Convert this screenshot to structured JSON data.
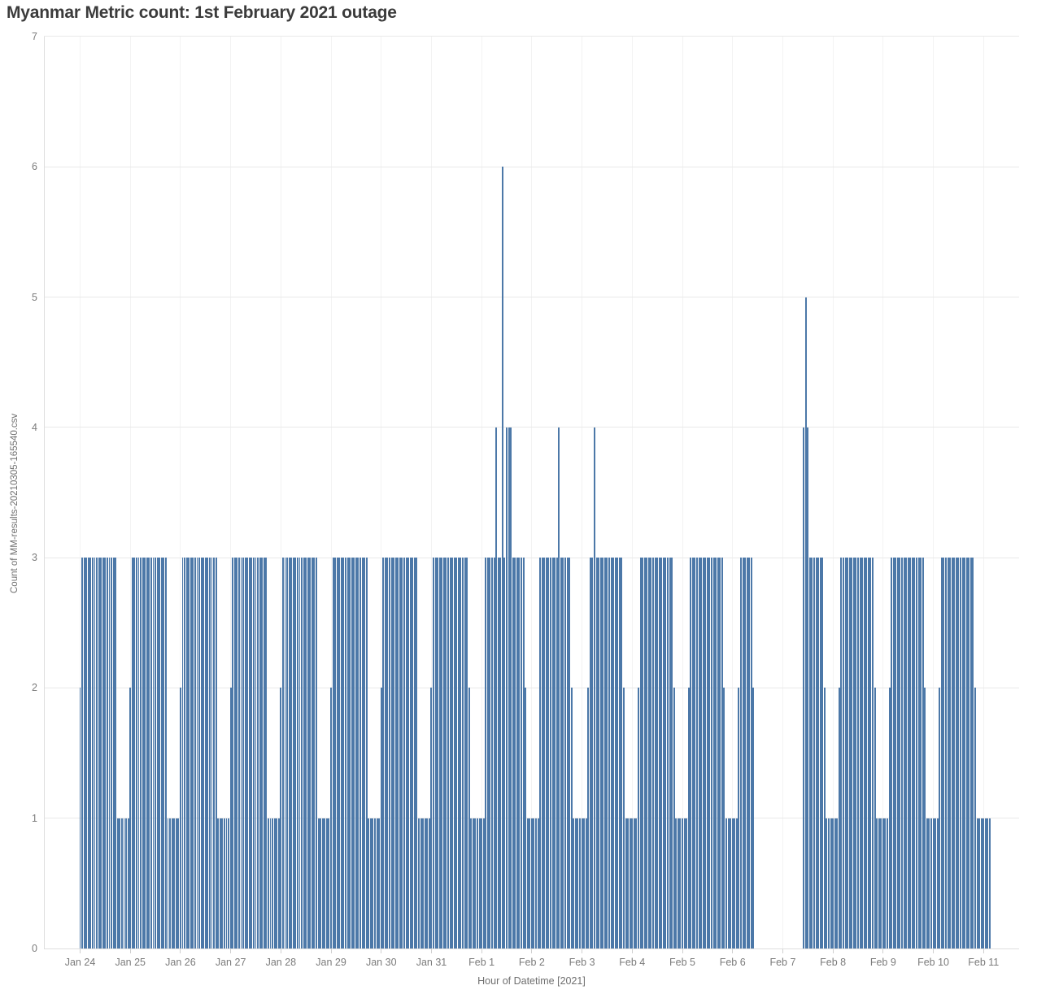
{
  "colors": {
    "bar": "#4c78a8",
    "title_text": "#3b3b3b",
    "axis_text": "#7b7b7b",
    "gridline": "#e9e9e9"
  },
  "chart_data": {
    "type": "bar",
    "title": "Myanmar Metric count: 1st February 2021 outage",
    "xlabel": "Hour of Datetime [2021]",
    "ylabel": "Count of MM-results-20210305-165540.csv",
    "ylim": [
      0,
      7
    ],
    "y_ticks": [
      0,
      1,
      2,
      3,
      4,
      5,
      6,
      7
    ],
    "grid": "horizontal-on, faint-vertical-day-lines",
    "legend": "none",
    "granularity": "one bar per hour, 24 bars per day tick interval",
    "x_tick_labels": [
      "Jan 24",
      "Jan 25",
      "Jan 26",
      "Jan 27",
      "Jan 28",
      "Jan 29",
      "Jan 30",
      "Jan 31",
      "Feb 1",
      "Feb 2",
      "Feb 3",
      "Feb 4",
      "Feb 5",
      "Feb 6",
      "Feb 7",
      "Feb 8",
      "Feb 9",
      "Feb 10",
      "Feb 11"
    ],
    "days": [
      {
        "date": "Jan 24",
        "hours": [
          2,
          3,
          3,
          3,
          3,
          3,
          3,
          3,
          3,
          3,
          3,
          3,
          3,
          3,
          3,
          3,
          3,
          3,
          1,
          1,
          1,
          1,
          1,
          1
        ]
      },
      {
        "date": "Jan 25",
        "hours": [
          2,
          3,
          3,
          3,
          3,
          3,
          3,
          3,
          3,
          3,
          3,
          3,
          3,
          3,
          3,
          3,
          3,
          3,
          1,
          1,
          1,
          1,
          1,
          1
        ]
      },
      {
        "date": "Jan 26",
        "hours": [
          2,
          3,
          3,
          3,
          3,
          3,
          3,
          3,
          3,
          3,
          3,
          3,
          3,
          3,
          3,
          3,
          3,
          3,
          1,
          1,
          1,
          1,
          1,
          1
        ]
      },
      {
        "date": "Jan 27",
        "hours": [
          2,
          3,
          3,
          3,
          3,
          3,
          3,
          3,
          3,
          3,
          3,
          3,
          3,
          3,
          3,
          3,
          3,
          3,
          1,
          1,
          1,
          1,
          1,
          1
        ]
      },
      {
        "date": "Jan 28",
        "hours": [
          2,
          3,
          3,
          3,
          3,
          3,
          3,
          3,
          3,
          3,
          3,
          3,
          3,
          3,
          3,
          3,
          3,
          3,
          1,
          1,
          1,
          1,
          1,
          1
        ]
      },
      {
        "date": "Jan 29",
        "hours": [
          2,
          3,
          3,
          3,
          3,
          3,
          3,
          3,
          3,
          3,
          3,
          3,
          3,
          3,
          3,
          3,
          3,
          3,
          1,
          1,
          1,
          1,
          1,
          1
        ]
      },
      {
        "date": "Jan 30",
        "hours": [
          2,
          3,
          3,
          3,
          3,
          3,
          3,
          3,
          3,
          3,
          3,
          3,
          3,
          3,
          3,
          3,
          3,
          3,
          1,
          1,
          1,
          1,
          1,
          1
        ]
      },
      {
        "date": "Jan 31",
        "hours": [
          2,
          3,
          3,
          3,
          3,
          3,
          3,
          3,
          3,
          3,
          3,
          3,
          3,
          3,
          3,
          3,
          3,
          3,
          2,
          1,
          1,
          1,
          1,
          1
        ]
      },
      {
        "date": "Feb 1",
        "hours": [
          1,
          1,
          3,
          3,
          3,
          3,
          3,
          4,
          3,
          3,
          6,
          3,
          4,
          4,
          4,
          3,
          3,
          3,
          3,
          3,
          3,
          2,
          1,
          1
        ]
      },
      {
        "date": "Feb 2",
        "hours": [
          1,
          1,
          1,
          1,
          3,
          3,
          3,
          3,
          3,
          3,
          3,
          3,
          3,
          4,
          3,
          3,
          3,
          3,
          3,
          2,
          1,
          1,
          1,
          1
        ]
      },
      {
        "date": "Feb 3",
        "hours": [
          1,
          1,
          1,
          2,
          3,
          3,
          4,
          3,
          3,
          3,
          3,
          3,
          3,
          3,
          3,
          3,
          3,
          3,
          3,
          3,
          2,
          1,
          1,
          1
        ]
      },
      {
        "date": "Feb 4",
        "hours": [
          1,
          1,
          1,
          2,
          3,
          3,
          3,
          3,
          3,
          3,
          3,
          3,
          3,
          3,
          3,
          3,
          3,
          3,
          3,
          3,
          2,
          1,
          1,
          1
        ]
      },
      {
        "date": "Feb 5",
        "hours": [
          1,
          1,
          1,
          2,
          3,
          3,
          3,
          3,
          3,
          3,
          3,
          3,
          3,
          3,
          3,
          3,
          3,
          3,
          3,
          3,
          2,
          1,
          1,
          1
        ]
      },
      {
        "date": "Feb 6",
        "hours": [
          1,
          1,
          1,
          2,
          3,
          3,
          3,
          3,
          3,
          3,
          2,
          null,
          null,
          null,
          null,
          null,
          null,
          null,
          null,
          null,
          null,
          null,
          null,
          null
        ]
      },
      {
        "date": "Feb 7",
        "hours": [
          null,
          null,
          null,
          null,
          null,
          null,
          null,
          null,
          null,
          null,
          4,
          5,
          4,
          3,
          3,
          3,
          3,
          3,
          3,
          3,
          2,
          1,
          1,
          1
        ]
      },
      {
        "date": "Feb 8",
        "hours": [
          1,
          1,
          1,
          2,
          3,
          3,
          3,
          3,
          3,
          3,
          3,
          3,
          3,
          3,
          3,
          3,
          3,
          3,
          3,
          3,
          2,
          1,
          1,
          1
        ]
      },
      {
        "date": "Feb 9",
        "hours": [
          1,
          1,
          1,
          2,
          3,
          3,
          3,
          3,
          3,
          3,
          3,
          3,
          3,
          3,
          3,
          3,
          3,
          3,
          3,
          3,
          2,
          1,
          1,
          1
        ]
      },
      {
        "date": "Feb 10",
        "hours": [
          1,
          1,
          1,
          2,
          3,
          3,
          3,
          3,
          3,
          3,
          3,
          3,
          3,
          3,
          3,
          3,
          3,
          3,
          3,
          3,
          2,
          1,
          1,
          1
        ]
      },
      {
        "date": "Feb 11",
        "hours": [
          1,
          1,
          1,
          1,
          null,
          null,
          null,
          null,
          null,
          null,
          null,
          null,
          null,
          null,
          null,
          null,
          null,
          null,
          null,
          null,
          null,
          null,
          null,
          null
        ]
      }
    ]
  }
}
